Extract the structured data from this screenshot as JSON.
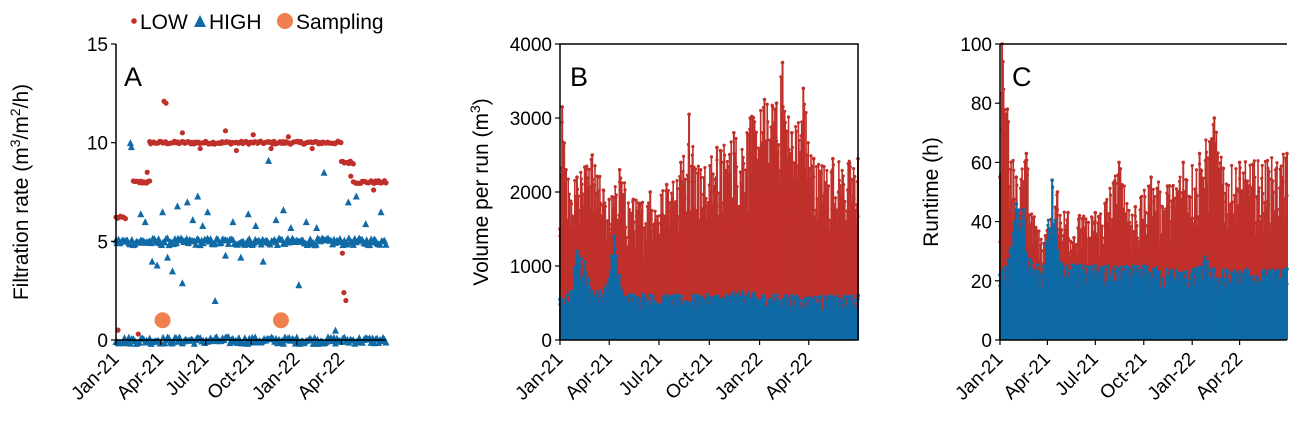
{
  "legend": {
    "items": [
      {
        "label": "LOW",
        "color": "#c0302b",
        "marker": "circle-small"
      },
      {
        "label": "HIGH",
        "color": "#0f6aa6",
        "marker": "triangle"
      },
      {
        "label": "Sampling",
        "color": "#f08050",
        "marker": "circle-large"
      }
    ],
    "placement": "top"
  },
  "x_ticks": [
    "Jan-21",
    "Apr-21",
    "Jul-21",
    "Oct-21",
    "Jan-22",
    "Apr-22"
  ],
  "chart_data": [
    {
      "type": "scatter",
      "panel_label": "A",
      "ylabel": "Filtration rate (m³/m²/h)",
      "ylabel_parts": {
        "pre": "Filtration rate (m",
        "sup1": "3",
        "mid": "/m",
        "sup2": "2",
        "post": "/h)"
      },
      "ylim": [
        0,
        15
      ],
      "yticks": [
        "0",
        "5",
        "10",
        "15"
      ],
      "xlim": [
        "2021-01-01",
        "2022-06-30"
      ],
      "grid": false,
      "series": [
        {
          "name": "LOW",
          "color": "#c0302b",
          "bands": [
            {
              "from": "2021-01-01",
              "to": "2021-01-20",
              "y": 6.2
            },
            {
              "from": "2021-02-05",
              "to": "2021-03-10",
              "y": 8.0
            },
            {
              "from": "2021-03-10",
              "to": "2022-03-31",
              "y": 10.0
            },
            {
              "from": "2022-04-01",
              "to": "2022-04-25",
              "y": 9.0
            },
            {
              "from": "2022-04-25",
              "to": "2022-06-30",
              "y": 8.0
            }
          ],
          "points": [
            {
              "x": "2021-01-05",
              "y": 0.5
            },
            {
              "x": "2021-02-15",
              "y": 0.3
            },
            {
              "x": "2021-03-05",
              "y": 8.5
            },
            {
              "x": "2021-04-08",
              "y": 12.1
            },
            {
              "x": "2021-04-12",
              "y": 12.0
            },
            {
              "x": "2021-05-15",
              "y": 10.5
            },
            {
              "x": "2021-06-20",
              "y": 9.7
            },
            {
              "x": "2021-08-10",
              "y": 10.6
            },
            {
              "x": "2021-09-01",
              "y": 9.6
            },
            {
              "x": "2021-10-05",
              "y": 10.4
            },
            {
              "x": "2021-11-10",
              "y": 9.7
            },
            {
              "x": "2021-12-15",
              "y": 10.3
            },
            {
              "x": "2022-02-01",
              "y": 9.7
            },
            {
              "x": "2022-04-03",
              "y": 4.4
            },
            {
              "x": "2022-04-06",
              "y": 2.4
            },
            {
              "x": "2022-04-10",
              "y": 2.0
            },
            {
              "x": "2022-04-20",
              "y": 8.3
            },
            {
              "x": "2022-06-05",
              "y": 7.6
            }
          ]
        },
        {
          "name": "HIGH",
          "color": "#0f6aa6",
          "bands": [
            {
              "from": "2021-01-01",
              "to": "2022-06-30",
              "y": 5.0
            },
            {
              "from": "2021-01-01",
              "to": "2022-06-30",
              "y": 0.0
            }
          ],
          "points": [
            {
              "x": "2021-01-30",
              "y": 10.0
            },
            {
              "x": "2021-02-01",
              "y": 9.8
            },
            {
              "x": "2021-02-20",
              "y": 6.4
            },
            {
              "x": "2021-03-01",
              "y": 6.0
            },
            {
              "x": "2021-03-15",
              "y": 4.0
            },
            {
              "x": "2021-03-25",
              "y": 3.8
            },
            {
              "x": "2021-04-05",
              "y": 6.5
            },
            {
              "x": "2021-04-15",
              "y": 4.2
            },
            {
              "x": "2021-04-25",
              "y": 3.5
            },
            {
              "x": "2021-05-05",
              "y": 6.8
            },
            {
              "x": "2021-05-15",
              "y": 2.9
            },
            {
              "x": "2021-05-25",
              "y": 7.0
            },
            {
              "x": "2021-06-05",
              "y": 6.1
            },
            {
              "x": "2021-06-15",
              "y": 7.3
            },
            {
              "x": "2021-06-25",
              "y": 5.8
            },
            {
              "x": "2021-07-05",
              "y": 6.5
            },
            {
              "x": "2021-07-20",
              "y": 2.0
            },
            {
              "x": "2021-08-10",
              "y": 4.3
            },
            {
              "x": "2021-08-25",
              "y": 6.0
            },
            {
              "x": "2021-09-10",
              "y": 4.2
            },
            {
              "x": "2021-09-25",
              "y": 6.4
            },
            {
              "x": "2021-10-10",
              "y": 5.8
            },
            {
              "x": "2021-10-25",
              "y": 4.0
            },
            {
              "x": "2021-11-05",
              "y": 9.1
            },
            {
              "x": "2021-11-20",
              "y": 6.1
            },
            {
              "x": "2021-12-05",
              "y": 6.6
            },
            {
              "x": "2021-12-20",
              "y": 5.7
            },
            {
              "x": "2022-01-05",
              "y": 2.8
            },
            {
              "x": "2022-01-20",
              "y": 6.0
            },
            {
              "x": "2022-02-10",
              "y": 5.7
            },
            {
              "x": "2022-02-25",
              "y": 8.5
            },
            {
              "x": "2022-03-20",
              "y": 0.5
            },
            {
              "x": "2022-04-15",
              "y": 7.0
            },
            {
              "x": "2022-05-01",
              "y": 7.3
            },
            {
              "x": "2022-05-20",
              "y": 5.9
            },
            {
              "x": "2022-06-20",
              "y": 6.5
            }
          ]
        },
        {
          "name": "Sampling",
          "color": "#f08050",
          "points": [
            {
              "x": "2021-04-05",
              "y": 1.0
            },
            {
              "x": "2021-11-30",
              "y": 1.0
            }
          ]
        }
      ]
    },
    {
      "type": "area",
      "panel_label": "B",
      "ylabel": "Volume per run (m³)",
      "ylabel_parts": {
        "pre": "Volume per run (m",
        "sup1": "3",
        "post": ")"
      },
      "ylim": [
        0,
        4000
      ],
      "yticks": [
        "0",
        "1000",
        "2000",
        "3000",
        "4000"
      ],
      "xlim": [
        "2021-01-01",
        "2022-06-30"
      ],
      "grid": false,
      "series": [
        {
          "name": "LOW",
          "color": "#c0302b",
          "upper_envelope": [
            {
              "x": "2021-01-01",
              "y": 1500
            },
            {
              "x": "2021-01-05",
              "y": 3150
            },
            {
              "x": "2021-01-12",
              "y": 2300
            },
            {
              "x": "2021-02-01",
              "y": 2200
            },
            {
              "x": "2021-03-01",
              "y": 2500
            },
            {
              "x": "2021-04-01",
              "y": 1900
            },
            {
              "x": "2021-04-20",
              "y": 2300
            },
            {
              "x": "2021-05-15",
              "y": 1900
            },
            {
              "x": "2021-06-15",
              "y": 2000
            },
            {
              "x": "2021-07-15",
              "y": 2100
            },
            {
              "x": "2021-08-10",
              "y": 2400
            },
            {
              "x": "2021-08-25",
              "y": 3050
            },
            {
              "x": "2021-09-15",
              "y": 2300
            },
            {
              "x": "2021-10-15",
              "y": 2600
            },
            {
              "x": "2021-11-15",
              "y": 2800
            },
            {
              "x": "2021-12-15",
              "y": 3000
            },
            {
              "x": "2022-01-10",
              "y": 3250
            },
            {
              "x": "2022-02-01",
              "y": 3200
            },
            {
              "x": "2022-02-12",
              "y": 3750
            },
            {
              "x": "2022-03-01",
              "y": 2800
            },
            {
              "x": "2022-03-22",
              "y": 3400
            },
            {
              "x": "2022-04-10",
              "y": 2450
            },
            {
              "x": "2022-05-15",
              "y": 2450
            },
            {
              "x": "2022-06-30",
              "y": 2450
            }
          ]
        },
        {
          "name": "HIGH",
          "color": "#0f6aa6",
          "upper_envelope": [
            {
              "x": "2021-01-01",
              "y": 550
            },
            {
              "x": "2021-01-20",
              "y": 650
            },
            {
              "x": "2021-02-01",
              "y": 1200
            },
            {
              "x": "2021-02-15",
              "y": 1050
            },
            {
              "x": "2021-03-01",
              "y": 650
            },
            {
              "x": "2021-03-25",
              "y": 700
            },
            {
              "x": "2021-04-10",
              "y": 1400
            },
            {
              "x": "2021-04-25",
              "y": 650
            },
            {
              "x": "2021-06-01",
              "y": 620
            },
            {
              "x": "2021-09-01",
              "y": 600
            },
            {
              "x": "2021-12-01",
              "y": 650
            },
            {
              "x": "2022-03-01",
              "y": 600
            },
            {
              "x": "2022-06-30",
              "y": 600
            }
          ]
        }
      ]
    },
    {
      "type": "area",
      "panel_label": "C",
      "ylabel": "Runtime (h)",
      "ylim": [
        0,
        100
      ],
      "yticks": [
        "0",
        "20",
        "40",
        "60",
        "80",
        "100"
      ],
      "xlim": [
        "2021-01-01",
        "2022-06-30"
      ],
      "grid": false,
      "series": [
        {
          "name": "LOW",
          "color": "#c0302b",
          "upper_envelope": [
            {
              "x": "2021-01-01",
              "y": 55
            },
            {
              "x": "2021-01-05",
              "y": 100
            },
            {
              "x": "2021-01-15",
              "y": 78
            },
            {
              "x": "2021-02-01",
              "y": 55
            },
            {
              "x": "2021-02-20",
              "y": 63
            },
            {
              "x": "2021-03-10",
              "y": 38
            },
            {
              "x": "2021-04-01",
              "y": 37
            },
            {
              "x": "2021-04-20",
              "y": 50
            },
            {
              "x": "2021-05-10",
              "y": 43
            },
            {
              "x": "2021-06-01",
              "y": 42
            },
            {
              "x": "2021-07-01",
              "y": 43
            },
            {
              "x": "2021-08-15",
              "y": 60
            },
            {
              "x": "2021-09-15",
              "y": 45
            },
            {
              "x": "2021-10-15",
              "y": 55
            },
            {
              "x": "2021-11-15",
              "y": 52
            },
            {
              "x": "2021-12-15",
              "y": 60
            },
            {
              "x": "2022-01-15",
              "y": 63
            },
            {
              "x": "2022-02-12",
              "y": 75
            },
            {
              "x": "2022-03-01",
              "y": 58
            },
            {
              "x": "2022-04-01",
              "y": 60
            },
            {
              "x": "2022-06-30",
              "y": 63
            }
          ]
        },
        {
          "name": "HIGH",
          "color": "#0f6aa6",
          "upper_envelope": [
            {
              "x": "2021-01-01",
              "y": 22
            },
            {
              "x": "2021-01-20",
              "y": 30
            },
            {
              "x": "2021-02-01",
              "y": 46
            },
            {
              "x": "2021-02-15",
              "y": 44
            },
            {
              "x": "2021-03-01",
              "y": 26
            },
            {
              "x": "2021-03-25",
              "y": 25
            },
            {
              "x": "2021-04-10",
              "y": 54
            },
            {
              "x": "2021-04-25",
              "y": 26
            },
            {
              "x": "2021-07-01",
              "y": 25
            },
            {
              "x": "2021-10-01",
              "y": 25
            },
            {
              "x": "2022-01-10",
              "y": 24
            },
            {
              "x": "2022-01-25",
              "y": 28
            },
            {
              "x": "2022-02-10",
              "y": 24
            },
            {
              "x": "2022-06-30",
              "y": 24
            }
          ]
        }
      ]
    }
  ]
}
